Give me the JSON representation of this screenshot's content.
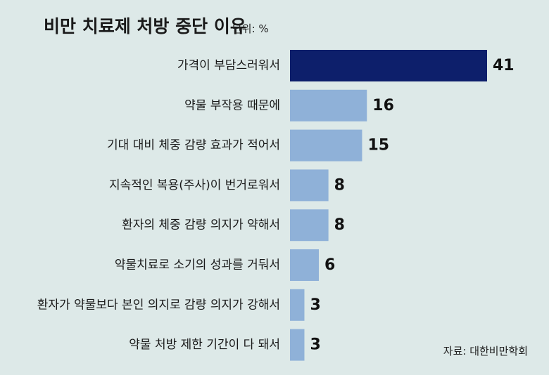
{
  "chart_data": {
    "type": "bar",
    "orientation": "horizontal",
    "title": "비만 치료제 처방 중단 이유",
    "unit_label": "단위: %",
    "categories": [
      "가격이 부담스러워서",
      "약물 부작용 때문에",
      "기대 대비 체중 감량 효과가 적어서",
      "지속적인 복용(주사)이 번거로워서",
      "환자의 체중 감량 의지가 약해서",
      "약물치료로 소기의 성과를 거둬서",
      "환자가 약물보다 본인 의지로 감량 의지가 강해서",
      "약물 처방 제한 기간이 다 돼서"
    ],
    "values": [
      41,
      16,
      15,
      8,
      8,
      6,
      3,
      3
    ],
    "highlight_index": 0,
    "xlim": [
      0,
      41
    ],
    "grid": false,
    "source": "자료: 대한비만학회",
    "colors": {
      "background": "#dde9e8",
      "highlight": "#0d1f6b",
      "bar": "#8fb1d8",
      "text": "#1a1a1a"
    }
  }
}
